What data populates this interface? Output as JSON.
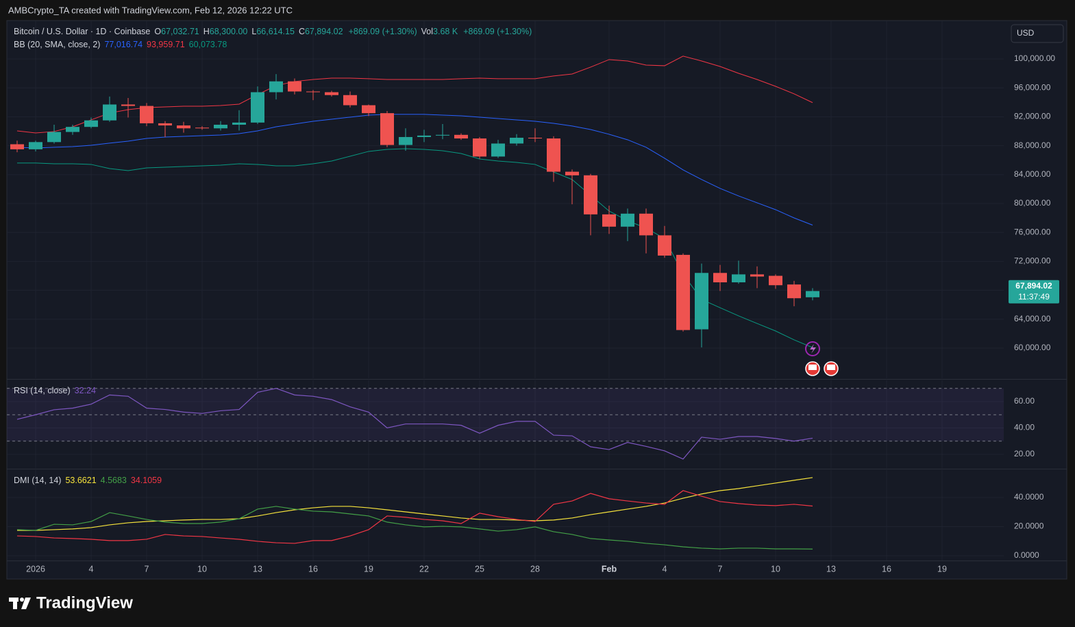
{
  "watermark": {
    "header": "AMBCrypto_TA created with TradingView.com, Feb 12, 2026 12:22 UTC",
    "logo": "TradingView"
  },
  "currency": "USD",
  "chart_data": [
    {
      "type": "candlestick",
      "symbol": "Bitcoin / U.S. Dollar · 1D · Coinbase",
      "legend_items": [
        {
          "label": "O",
          "text": "67,032.71"
        },
        {
          "label": "H",
          "text": "68,300.00"
        },
        {
          "label": "L",
          "text": "66,614.15"
        },
        {
          "label": "C",
          "text": "67,894.02"
        },
        {
          "text": "+869.09 (+1.30%)"
        },
        {
          "label": "Vol",
          "text": "3.68 K"
        },
        {
          "text": "+869.09 (+1.30%)"
        }
      ],
      "overlay_name": "BB (20, SMA, close, 2)",
      "up_color": "#26a69a",
      "down_color": "#ef5350",
      "categories": [
        null,
        "2026",
        null,
        null,
        "4",
        null,
        null,
        "7",
        null,
        null,
        "10",
        null,
        null,
        "13",
        null,
        null,
        "16",
        null,
        null,
        "19",
        null,
        null,
        "22",
        null,
        null,
        "25",
        null,
        null,
        "28",
        null,
        null,
        null,
        "Feb",
        null,
        null,
        "4",
        null,
        null,
        "7",
        null,
        null,
        "10",
        null,
        null,
        "13",
        null,
        null,
        "16",
        null,
        null,
        "19"
      ],
      "open": [
        88200,
        87500,
        88500,
        89900,
        90600,
        91500,
        93700,
        93500,
        91100,
        90800,
        90500,
        90400,
        90900,
        91200,
        95400,
        96900,
        95500,
        95400,
        95000,
        93600,
        92500,
        88100,
        89200,
        89400,
        89500,
        89000,
        86500,
        88300,
        89100,
        89000,
        84400,
        83900,
        78500,
        76800,
        78600,
        75600,
        72900,
        62600,
        70400,
        69100,
        70200,
        70000,
        68800,
        67032.71,
        null,
        null,
        null,
        null,
        null,
        null,
        null
      ],
      "high": [
        88700,
        88700,
        90900,
        90900,
        91900,
        94800,
        94600,
        93900,
        91400,
        91300,
        90700,
        91400,
        92900,
        96200,
        97900,
        97300,
        95700,
        95600,
        95500,
        93700,
        92800,
        90400,
        90200,
        91000,
        89700,
        89200,
        88800,
        89600,
        90400,
        89300,
        84700,
        84100,
        79700,
        79300,
        79300,
        76900,
        73100,
        71700,
        71500,
        72100,
        71300,
        70200,
        69300,
        68300,
        null,
        null,
        null,
        null,
        null,
        null,
        null
      ],
      "low": [
        87100,
        87200,
        88300,
        89500,
        90400,
        91300,
        91900,
        90700,
        89200,
        89800,
        90200,
        90100,
        90100,
        91000,
        94400,
        95100,
        94300,
        94800,
        93300,
        92100,
        87800,
        87300,
        88500,
        88900,
        88800,
        86200,
        86300,
        88000,
        88500,
        83000,
        79900,
        75600,
        75800,
        74800,
        73100,
        72500,
        62300,
        60100,
        67900,
        68900,
        68300,
        68200,
        65800,
        66614.15,
        null,
        null,
        null,
        null,
        null,
        null,
        null
      ],
      "close": [
        87500,
        88500,
        89900,
        90600,
        91500,
        93700,
        93500,
        91100,
        90800,
        90400,
        90400,
        90900,
        91200,
        95400,
        96900,
        95500,
        95400,
        95000,
        93600,
        92500,
        88100,
        89200,
        89400,
        89500,
        89000,
        86500,
        88300,
        89100,
        89000,
        84400,
        83900,
        78500,
        76800,
        78600,
        75600,
        72800,
        62500,
        70400,
        69100,
        70200,
        69900,
        68700,
        66900,
        67894.02,
        null,
        null,
        null,
        null,
        null,
        null,
        null
      ],
      "series": [
        {
          "color": "#2962ff",
          "legend_value": "77,016.74",
          "values": [
            87780,
            87680,
            87780,
            87870,
            88060,
            88350,
            88630,
            89010,
            89200,
            89290,
            89390,
            89480,
            89670,
            90050,
            90620,
            91000,
            91380,
            91660,
            91950,
            92230,
            92330,
            92330,
            92330,
            92230,
            92140,
            91950,
            91760,
            91570,
            91380,
            91090,
            90720,
            90240,
            89580,
            88820,
            87780,
            86260,
            84650,
            83320,
            82090,
            81050,
            80100,
            79150,
            78010,
            77016.74,
            null,
            null,
            null,
            null,
            null,
            null,
            null
          ]
        },
        {
          "color": "#f23645",
          "legend_value": "93,959.71",
          "values": [
            90050,
            89770,
            89960,
            90620,
            91570,
            92520,
            92990,
            93270,
            93370,
            93460,
            93460,
            93560,
            93750,
            95080,
            96310,
            96880,
            97160,
            97350,
            97350,
            97260,
            97160,
            97160,
            97160,
            97160,
            97260,
            97350,
            97260,
            97260,
            97260,
            97640,
            97920,
            98870,
            99910,
            99720,
            99150,
            99060,
            100390,
            99720,
            98960,
            98010,
            97160,
            96210,
            95170,
            93959.71,
            null,
            null,
            null,
            null,
            null,
            null,
            null
          ]
        },
        {
          "color": "#089981",
          "legend_value": "60,073.78",
          "values": [
            85600,
            85600,
            85500,
            85500,
            85410,
            84840,
            84550,
            84930,
            85030,
            85120,
            85220,
            85310,
            85500,
            85410,
            85220,
            85220,
            85500,
            85880,
            86540,
            87210,
            87490,
            87580,
            87490,
            87300,
            86920,
            86160,
            85880,
            85690,
            85410,
            84360,
            83320,
            81140,
            78960,
            77630,
            76590,
            75170,
            70240,
            66730,
            65590,
            64460,
            63410,
            62370,
            61140,
            60073.78,
            null,
            null,
            null,
            null,
            null,
            null,
            null
          ]
        }
      ],
      "last_price_label": "67,894.02",
      "countdown": "11:37:49",
      "ylim": [
        55830,
        105310
      ],
      "yticks": [
        {
          "value": 60000,
          "label": "60,000.00"
        },
        {
          "value": 64000,
          "label": "64,000.00"
        },
        {
          "value": 68000,
          "label": "68,000.00"
        },
        {
          "value": 72000,
          "label": "72,000.00"
        },
        {
          "value": 76000,
          "label": "76,000.00"
        },
        {
          "value": 80000,
          "label": "80,000.00"
        },
        {
          "value": 84000,
          "label": "84,000.00"
        },
        {
          "value": 88000,
          "label": "88,000.00"
        },
        {
          "value": 92000,
          "label": "92,000.00"
        },
        {
          "value": 96000,
          "label": "96,000.00"
        },
        {
          "value": 100000,
          "label": "100,000.00"
        }
      ],
      "grid": true
    },
    {
      "type": "line",
      "indicator": "RSI (14, close)",
      "series": [
        {
          "color": "#7e57c2",
          "legend_value": "32.24",
          "values": [
            46.5,
            50,
            53.8,
            55,
            58,
            65,
            64,
            55,
            54,
            52,
            51,
            53,
            54,
            67,
            70,
            65,
            64,
            61.5,
            56,
            52,
            40,
            43,
            43,
            43,
            42,
            36,
            42,
            45,
            45,
            34.5,
            34,
            25.7,
            23.6,
            29,
            26,
            22.6,
            16.4,
            33,
            31.4,
            33.5,
            33.5,
            32,
            30,
            32.24,
            null,
            null,
            null,
            null,
            null,
            null,
            null
          ]
        }
      ],
      "levels": [
        70,
        50,
        30
      ],
      "ylim": [
        9.6,
        76.1
      ],
      "yticks": [
        {
          "value": 20,
          "label": "20.00"
        },
        {
          "value": 40,
          "label": "40.00"
        },
        {
          "value": 60,
          "label": "60.00"
        }
      ],
      "grid": true
    },
    {
      "type": "line",
      "indicator": "DMI (14, 14)",
      "series": [
        {
          "color": "#f7e43c",
          "legend_value": "53.6621",
          "values": [
            17.4,
            17.4,
            17.9,
            18.4,
            19.3,
            21.2,
            22.6,
            23.5,
            24,
            24.5,
            24.9,
            24.9,
            25.4,
            27.3,
            29.6,
            31.5,
            32.9,
            33.9,
            33.9,
            32.9,
            31.5,
            30.1,
            28.7,
            27.3,
            25.9,
            24.9,
            24.9,
            24.5,
            24,
            24.5,
            25.9,
            28.2,
            30.1,
            32,
            33.9,
            36.2,
            39.5,
            42.4,
            44.7,
            46.1,
            48,
            49.9,
            51.8,
            53.6621,
            null,
            null,
            null,
            null,
            null,
            null,
            null
          ]
        },
        {
          "color": "#43a047",
          "legend_value": "4.5683",
          "values": [
            17.9,
            17.4,
            21.6,
            21.2,
            23.5,
            29.6,
            27.3,
            24.9,
            23.1,
            22.1,
            22.1,
            23.1,
            25.4,
            32,
            33.9,
            32,
            30.6,
            30.1,
            28.7,
            27.3,
            23.1,
            21.2,
            19.8,
            20.2,
            19.8,
            18.4,
            16.9,
            17.9,
            19.8,
            16.5,
            14.6,
            11.8,
            10.8,
            9.9,
            8.5,
            7.5,
            6.1,
            5.2,
            4.7,
            5.2,
            5.2,
            4.7,
            4.7,
            4.5683,
            null,
            null,
            null,
            null,
            null,
            null,
            null
          ]
        },
        {
          "color": "#f23645",
          "legend_value": "34.1059",
          "values": [
            13.6,
            13.2,
            12.2,
            11.8,
            11.3,
            10.4,
            10.4,
            11.3,
            14.6,
            13.6,
            13.2,
            12.2,
            11.3,
            9.9,
            8.9,
            8.5,
            10.4,
            10.4,
            13.6,
            17.9,
            27.3,
            26.4,
            24.9,
            24,
            22.1,
            29.2,
            26.8,
            24.9,
            23.5,
            35.3,
            37.6,
            42.8,
            39.1,
            37.6,
            36.2,
            35.3,
            44.7,
            40.9,
            37.2,
            35.8,
            34.8,
            34.4,
            35.3,
            34.1059,
            null,
            null,
            null,
            null,
            null,
            null,
            null
          ]
        }
      ],
      "ylim": [
        -3.3,
        58.8
      ],
      "yticks": [
        {
          "value": 0,
          "label": "0.0000"
        },
        {
          "value": 20,
          "label": "20.0000"
        },
        {
          "value": 40,
          "label": "40.0000"
        }
      ],
      "grid": true
    }
  ]
}
